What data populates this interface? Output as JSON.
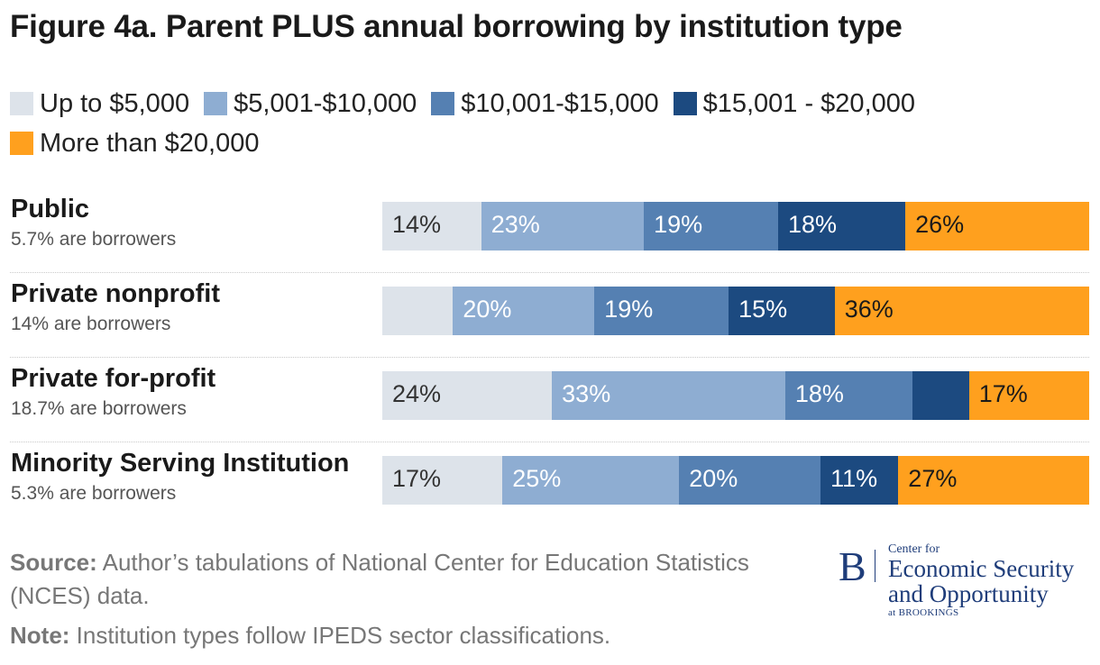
{
  "title": "Figure 4a. Parent PLUS annual borrowing by institution type",
  "chart_data": {
    "type": "bar",
    "orientation": "horizontal",
    "stacked": true,
    "title": "Figure 4a. Parent PLUS annual borrowing by institution type",
    "legend_position": "top",
    "categories": [
      "Public",
      "Private nonprofit",
      "Private for-profit",
      "Minority Serving Institution"
    ],
    "subtitles": [
      "5.7% are borrowers",
      "14% are borrowers",
      "18.7% are borrowers",
      "5.3% are borrowers"
    ],
    "series": [
      {
        "name": "Up to $5,000",
        "color": "#dde3ea",
        "text_color": "#333333",
        "values": [
          14,
          10,
          24,
          17
        ],
        "labels": [
          "14%",
          "",
          "24%",
          "17%"
        ]
      },
      {
        "name": "$5,001-$10,000",
        "color": "#8eadd2",
        "text_color": "#ffffff",
        "values": [
          23,
          20,
          33,
          25
        ],
        "labels": [
          "23%",
          "20%",
          "33%",
          "25%"
        ]
      },
      {
        "name": "$10,001-$15,000",
        "color": "#5580b2",
        "text_color": "#ffffff",
        "values": [
          19,
          19,
          18,
          20
        ],
        "labels": [
          "19%",
          "19%",
          "18%",
          "20%"
        ]
      },
      {
        "name": "$15,001 - $20,000",
        "color": "#1c4a80",
        "text_color": "#ffffff",
        "values": [
          18,
          15,
          8,
          11
        ],
        "labels": [
          "18%",
          "15%",
          "",
          "11%"
        ]
      },
      {
        "name": "More than $20,000",
        "color": "#ffa01e",
        "text_color": "#1a1a1a",
        "values": [
          26,
          36,
          17,
          27
        ],
        "labels": [
          "26%",
          "36%",
          "17%",
          "27%"
        ]
      }
    ]
  },
  "footer": {
    "source_label": "Source:",
    "source_text": "Author’s tabulations of National Center for Education Statistics (NCES) data.",
    "note_label": "Note:",
    "note_text": "Institution types follow IPEDS sector classifications."
  },
  "logo": {
    "letter": "B",
    "small": "Center for",
    "line1": "Economic Security",
    "line2": "and Opportunity",
    "bottom": "at BROOKINGS"
  }
}
